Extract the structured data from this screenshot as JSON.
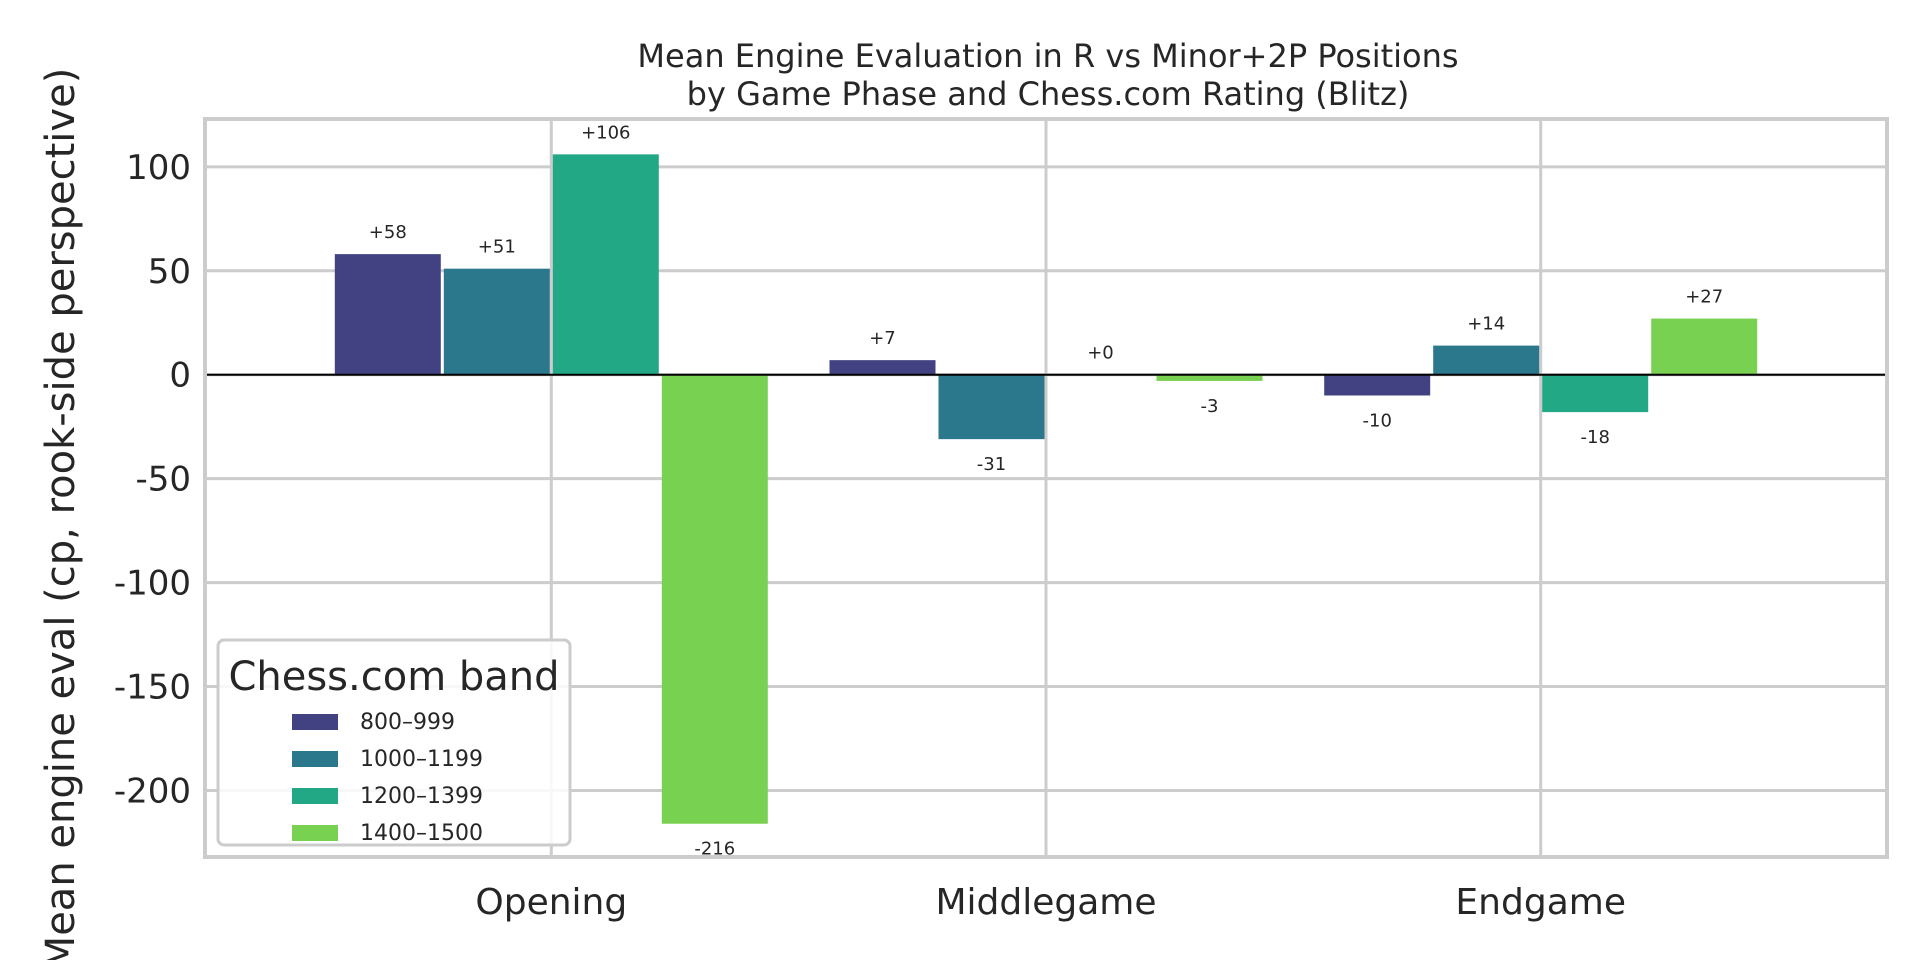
{
  "chart_data": {
    "type": "bar",
    "title": "Mean Engine Evaluation in R vs Minor+2P Positions",
    "subtitle": "by Game Phase and Chess.com Rating (Blitz)",
    "xlabel": "",
    "ylabel": "Mean engine eval (cp, rook-side perspective)",
    "categories": [
      "Opening",
      "Middlegame",
      "Endgame"
    ],
    "ylim": [
      -232,
      123
    ],
    "yticks": [
      -200,
      -150,
      -100,
      -50,
      0,
      50,
      100
    ],
    "ytick_labels": [
      "-200",
      "-150",
      "-100",
      "-50",
      "0",
      "50",
      "100"
    ],
    "grid": true,
    "legend": {
      "title": "Chess.com band",
      "placement": "lower-left"
    },
    "series": [
      {
        "name": "800–999",
        "color": "#424283",
        "values": [
          58,
          7,
          -10
        ],
        "labels": [
          "+58",
          "+7",
          "-10"
        ]
      },
      {
        "name": "1000–1199",
        "color": "#2b778c",
        "values": [
          51,
          -31,
          14
        ],
        "labels": [
          "+51",
          "-31",
          "+14"
        ]
      },
      {
        "name": "1200–1399",
        "color": "#22a884",
        "values": [
          106,
          0,
          -18
        ],
        "labels": [
          "+106",
          "+0",
          "-18"
        ]
      },
      {
        "name": "1400–1500",
        "color": "#79d151",
        "values": [
          -216,
          -3,
          27
        ],
        "labels": [
          "-216",
          "-3",
          "+27"
        ]
      }
    ]
  }
}
